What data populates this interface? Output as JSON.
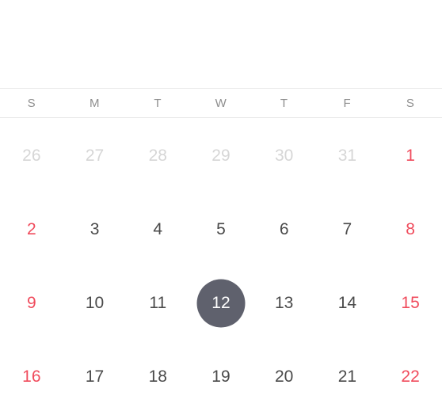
{
  "weekdays": [
    "S",
    "M",
    "T",
    "W",
    "T",
    "F",
    "S"
  ],
  "weeks": [
    [
      {
        "day": "26",
        "state": "muted"
      },
      {
        "day": "27",
        "state": "muted"
      },
      {
        "day": "28",
        "state": "muted"
      },
      {
        "day": "29",
        "state": "muted"
      },
      {
        "day": "30",
        "state": "muted"
      },
      {
        "day": "31",
        "state": "muted"
      },
      {
        "day": "1",
        "state": "weekend"
      }
    ],
    [
      {
        "day": "2",
        "state": "weekend"
      },
      {
        "day": "3",
        "state": "normal"
      },
      {
        "day": "4",
        "state": "normal"
      },
      {
        "day": "5",
        "state": "normal"
      },
      {
        "day": "6",
        "state": "normal"
      },
      {
        "day": "7",
        "state": "normal"
      },
      {
        "day": "8",
        "state": "weekend"
      }
    ],
    [
      {
        "day": "9",
        "state": "weekend"
      },
      {
        "day": "10",
        "state": "normal"
      },
      {
        "day": "11",
        "state": "normal"
      },
      {
        "day": "12",
        "state": "selected"
      },
      {
        "day": "13",
        "state": "normal"
      },
      {
        "day": "14",
        "state": "normal"
      },
      {
        "day": "15",
        "state": "weekend"
      }
    ],
    [
      {
        "day": "16",
        "state": "weekend"
      },
      {
        "day": "17",
        "state": "normal"
      },
      {
        "day": "18",
        "state": "normal"
      },
      {
        "day": "19",
        "state": "normal"
      },
      {
        "day": "20",
        "state": "normal"
      },
      {
        "day": "21",
        "state": "normal"
      },
      {
        "day": "22",
        "state": "weekend"
      }
    ]
  ],
  "colors": {
    "weekend": "#f04b5c",
    "muted": "#d6d6d6",
    "normal": "#4a4a4a",
    "selected_bg": "#5f616d",
    "selected_text": "#ffffff",
    "weekday_header": "#8e8e8e"
  }
}
